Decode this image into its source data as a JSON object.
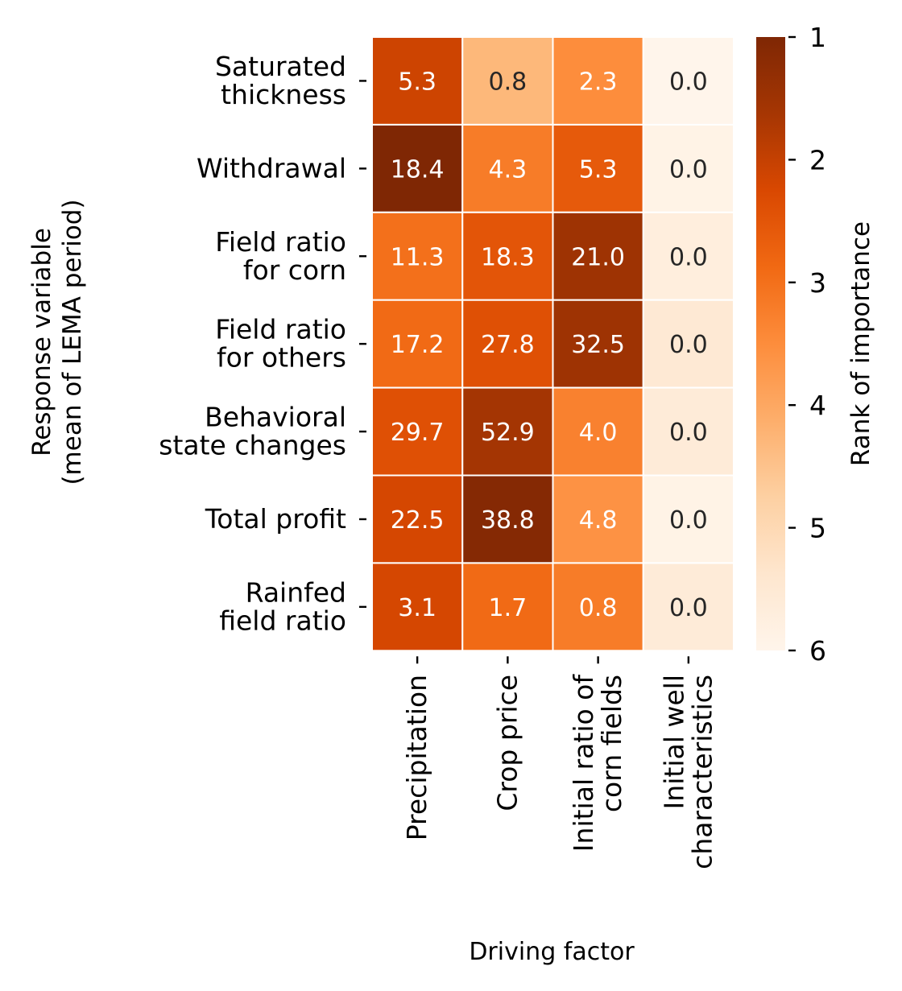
{
  "chart_data": {
    "type": "heatmap",
    "xlabel": "Driving factor",
    "ylabel": [
      "Response variable",
      "(mean of LEMA period)"
    ],
    "x_categories": [
      [
        "Precipitation"
      ],
      [
        "Crop price"
      ],
      [
        "Initial ratio of",
        "corn fields"
      ],
      [
        "Initial well",
        "characteristics"
      ]
    ],
    "y_categories": [
      [
        "Saturated",
        "thickness"
      ],
      [
        "Withdrawal"
      ],
      [
        "Field ratio",
        "for corn"
      ],
      [
        "Field ratio",
        "for others"
      ],
      [
        "Behavioral",
        "state changes"
      ],
      [
        "Total profit"
      ],
      [
        "Rainfed",
        "field ratio"
      ]
    ],
    "annotations": [
      [
        "5.3",
        "0.8",
        "2.3",
        "0.0"
      ],
      [
        "18.4",
        "4.3",
        "5.3",
        "0.0"
      ],
      [
        "11.3",
        "18.3",
        "21.0",
        "0.0"
      ],
      [
        "17.2",
        "27.8",
        "32.5",
        "0.0"
      ],
      [
        "29.7",
        "52.9",
        "4.0",
        "0.0"
      ],
      [
        "22.5",
        "38.8",
        "4.8",
        "0.0"
      ],
      [
        "3.1",
        "1.7",
        "0.8",
        "0.0"
      ]
    ],
    "rank": [
      [
        2.1,
        4.3,
        3.5,
        6.0
      ],
      [
        1.0,
        3.2,
        2.6,
        5.9
      ],
      [
        3.0,
        2.5,
        1.5,
        5.7
      ],
      [
        2.9,
        2.4,
        1.5,
        5.5
      ],
      [
        2.4,
        1.6,
        3.3,
        5.6
      ],
      [
        2.2,
        1.1,
        3.6,
        5.9
      ],
      [
        2.2,
        2.9,
        3.2,
        5.6
      ]
    ],
    "colorbar": {
      "label": "Rank of importance",
      "ticks": [
        "1",
        "2",
        "3",
        "4",
        "5",
        "6"
      ],
      "range": [
        1,
        6
      ],
      "colormap": "Oranges (reversed: 1 = dark)",
      "colors": [
        "#7f2704",
        "#a63603",
        "#d94801",
        "#f16913",
        "#fd8d3c",
        "#fdae6b",
        "#fdd0a2",
        "#fee6ce",
        "#fff5eb"
      ]
    },
    "text_colors": {
      "dark_cell": "#ffffff",
      "light_cell": "#262626"
    }
  }
}
